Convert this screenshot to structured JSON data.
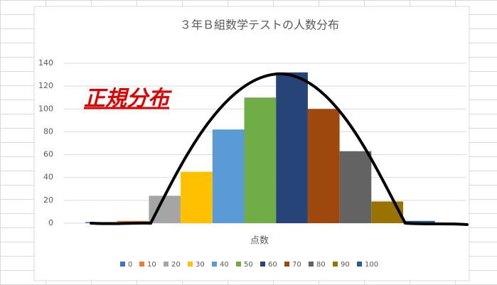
{
  "chart_data": {
    "type": "bar",
    "title": "３年Ｂ組数学テストの人数分布",
    "x_label": "点数",
    "annotation": "正規分布",
    "categories": [
      null
    ],
    "series": [
      {
        "name": "0",
        "color": "#4472c4",
        "values": [
          1
        ]
      },
      {
        "name": "10",
        "color": "#ed7d31",
        "values": [
          2
        ]
      },
      {
        "name": "20",
        "color": "#a5a5a5",
        "values": [
          24
        ]
      },
      {
        "name": "30",
        "color": "#ffc000",
        "values": [
          45
        ]
      },
      {
        "name": "40",
        "color": "#5b9bd5",
        "values": [
          82
        ]
      },
      {
        "name": "50",
        "color": "#70ad47",
        "values": [
          110
        ]
      },
      {
        "name": "60",
        "color": "#264478",
        "values": [
          132
        ]
      },
      {
        "name": "70",
        "color": "#9e480e",
        "values": [
          100
        ]
      },
      {
        "name": "80",
        "color": "#636363",
        "values": [
          63
        ]
      },
      {
        "name": "90",
        "color": "#997300",
        "values": [
          19
        ]
      },
      {
        "name": "100",
        "color": "#255e91",
        "values": [
          2
        ]
      }
    ],
    "ylim": [
      0,
      140
    ],
    "yticks": [
      0,
      20,
      40,
      60,
      80,
      100,
      120,
      140
    ],
    "grid": true,
    "legend": "bottom"
  }
}
